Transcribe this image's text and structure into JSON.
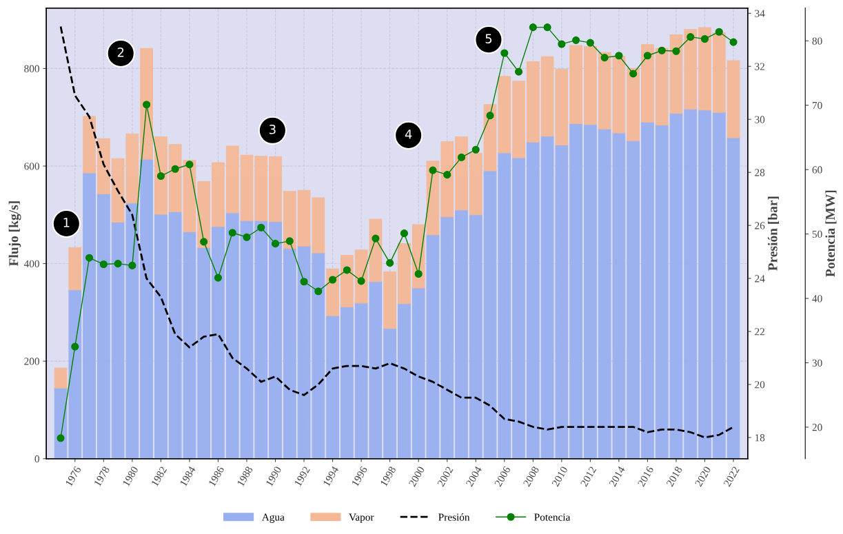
{
  "chart_data": {
    "type": "bar",
    "stacked": true,
    "x": [
      1975,
      1976,
      1977,
      1978,
      1979,
      1980,
      1981,
      1982,
      1983,
      1984,
      1985,
      1986,
      1987,
      1988,
      1989,
      1990,
      1991,
      1992,
      1993,
      1994,
      1995,
      1996,
      1997,
      1998,
      1999,
      2000,
      2001,
      2002,
      2003,
      2004,
      2005,
      2006,
      2007,
      2008,
      2009,
      2010,
      2011,
      2012,
      2013,
      2014,
      2015,
      2016,
      2017,
      2018,
      2019,
      2020,
      2021,
      2022
    ],
    "series": [
      {
        "name": "Agua",
        "color": "#98aff0",
        "values": [
          145,
          346,
          586,
          543,
          485,
          524,
          614,
          501,
          506,
          465,
          433,
          476,
          504,
          488,
          488,
          486,
          431,
          436,
          422,
          293,
          311,
          319,
          363,
          267,
          318,
          350,
          459,
          496,
          510,
          500,
          590,
          627,
          617,
          649,
          661,
          643,
          687,
          685,
          676,
          668,
          652,
          690,
          684,
          708,
          717,
          715,
          710,
          658
        ]
      },
      {
        "name": "Vapor",
        "color": "#f4b896",
        "values": [
          41,
          87,
          116,
          113,
          130,
          142,
          227,
          159,
          138,
          147,
          135,
          131,
          137,
          134,
          132,
          133,
          117,
          114,
          113,
          96,
          106,
          109,
          128,
          116,
          123,
          130,
          151,
          154,
          150,
          126,
          136,
          157,
          157,
          165,
          163,
          155,
          160,
          160,
          157,
          157,
          148,
          159,
          157,
          161,
          163,
          169,
          163,
          158
        ]
      },
      {
        "name": "Presión",
        "type": "line",
        "axis": "y2",
        "color": "#000000",
        "line_style": "dashed",
        "marker": "none",
        "values": [
          33.5,
          30.9,
          30.1,
          28.3,
          27.3,
          26.4,
          24.0,
          23.3,
          21.9,
          21.4,
          21.8,
          21.9,
          21.0,
          20.6,
          20.1,
          20.3,
          19.8,
          19.6,
          20.0,
          20.6,
          20.7,
          20.7,
          20.6,
          20.8,
          20.6,
          20.3,
          20.1,
          19.8,
          19.5,
          19.5,
          19.2,
          18.7,
          18.6,
          18.4,
          18.3,
          18.4,
          18.4,
          18.4,
          18.4,
          18.4,
          18.4,
          18.2,
          18.3,
          18.3,
          18.2,
          18.0,
          18.1,
          18.4
        ]
      },
      {
        "name": "Potencia",
        "type": "line",
        "axis": "y3",
        "color": "#008000",
        "line_style": "solid",
        "marker": "circle",
        "values": [
          18.3,
          32.5,
          46.3,
          45.3,
          45.4,
          45.1,
          70.1,
          59.0,
          60.1,
          60.8,
          48.8,
          43.2,
          50.2,
          49.5,
          51.0,
          48.5,
          48.9,
          42.6,
          41.1,
          42.9,
          44.4,
          42.7,
          49.3,
          45.5,
          50.1,
          43.8,
          59.9,
          59.2,
          61.9,
          63.1,
          68.4,
          78.1,
          75.2,
          82.1,
          82.1,
          79.5,
          80.1,
          79.7,
          77.4,
          77.7,
          74.9,
          77.7,
          78.5,
          78.4,
          80.6,
          80.3,
          81.4,
          79.8
        ]
      }
    ],
    "ylabel": "Flujo [kg/s]",
    "y2label": "Presión [bar]",
    "y3label": "Potencia [MW]",
    "xlim": [
      1974,
      2023
    ],
    "xticks": [
      1976,
      1978,
      1980,
      1982,
      1984,
      1986,
      1988,
      1990,
      1992,
      1994,
      1996,
      1998,
      2000,
      2002,
      2004,
      2006,
      2008,
      2010,
      2012,
      2014,
      2016,
      2018,
      2020,
      2022
    ],
    "ylim": [
      0,
      924
    ],
    "yticks": [
      0,
      200,
      400,
      600,
      800
    ],
    "y2lim": [
      17.2,
      34.2
    ],
    "y2ticks": [
      18,
      20,
      22,
      24,
      26,
      28,
      30,
      32,
      34
    ],
    "y3lim": [
      15.1,
      85.1
    ],
    "y3ticks": [
      20,
      30,
      40,
      50,
      60,
      70,
      80
    ],
    "annotations": [
      {
        "text": "1",
        "x": 1975.4,
        "y": 482
      },
      {
        "text": "2",
        "x": 1979.2,
        "y": 831
      },
      {
        "text": "3",
        "x": 1989.8,
        "y": 673
      },
      {
        "text": "4",
        "x": 1999.3,
        "y": 663
      },
      {
        "text": "5",
        "x": 2004.9,
        "y": 859
      }
    ],
    "grid": true,
    "legend": "bottom"
  }
}
